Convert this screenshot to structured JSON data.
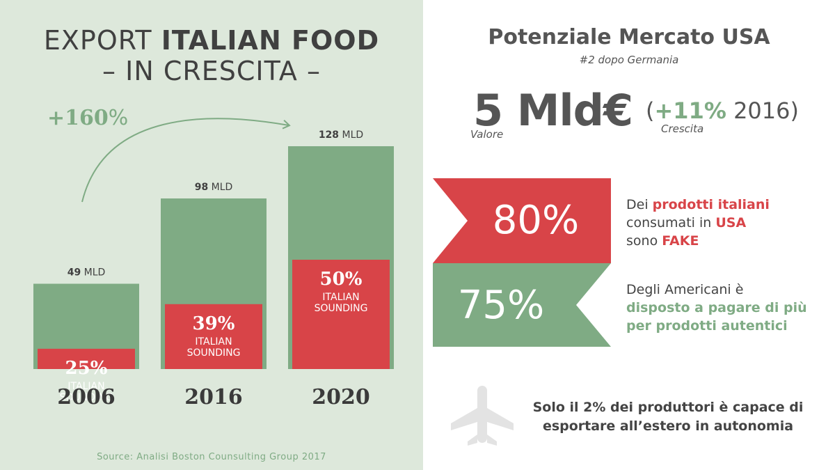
{
  "colors": {
    "green": "#7fab84",
    "red": "#d84448",
    "panel": "#dde8db",
    "text": "#404040"
  },
  "left": {
    "title_light": "EXPORT",
    "title_bold": "ITALIAN FOOD",
    "subtitle_dash_left": "–",
    "subtitle": "IN CRESCITA",
    "subtitle_dash_right": "–",
    "growth_plus": "+160",
    "growth_pct": "%",
    "source": "Source: Analisi Boston Counsulting Group 2017"
  },
  "chart_data": {
    "type": "bar",
    "categories": [
      "2006",
      "2016",
      "2020"
    ],
    "total_labels": [
      {
        "num": "49",
        "unit": "MLD"
      },
      {
        "num": "98",
        "unit": "MLD"
      },
      {
        "num": "128",
        "unit": "MLD"
      }
    ],
    "series": [
      {
        "name": "",
        "values": [
          49,
          98,
          128
        ]
      }
    ],
    "italian_sounding_pct": [
      25,
      39,
      50
    ],
    "pct_labels": [
      "25%",
      "39%",
      "50%"
    ],
    "segment_label_line1": "ITALIAN",
    "segment_label_line2": "SOUNDING",
    "ylim": [
      0,
      128
    ]
  },
  "right": {
    "title": "Potenziale Mercato USA",
    "subtitle": "#2 dopo Germania",
    "value": "5 Mld€",
    "value_label": "Valore",
    "growth_open": "(",
    "growth_value": "+11%",
    "growth_year": "2016)",
    "growth_label": "Crescita",
    "stat1": {
      "value": "80%",
      "line1_a": "Dei ",
      "line1_b": "prodotti italiani",
      "line2_a": "consumati in ",
      "line2_b": "USA",
      "line3_a": "sono ",
      "line3_b": "FAKE"
    },
    "stat2": {
      "value": "75%",
      "line1": "Degli Americani è",
      "line2": "disposto a pagare di più",
      "line3": "per prodotti autentici"
    },
    "note_line1": "Solo il 2% dei produttori è capace di",
    "note_line2": "esportare all’estero in autonomia",
    "plane_icon": "airplane-icon"
  }
}
